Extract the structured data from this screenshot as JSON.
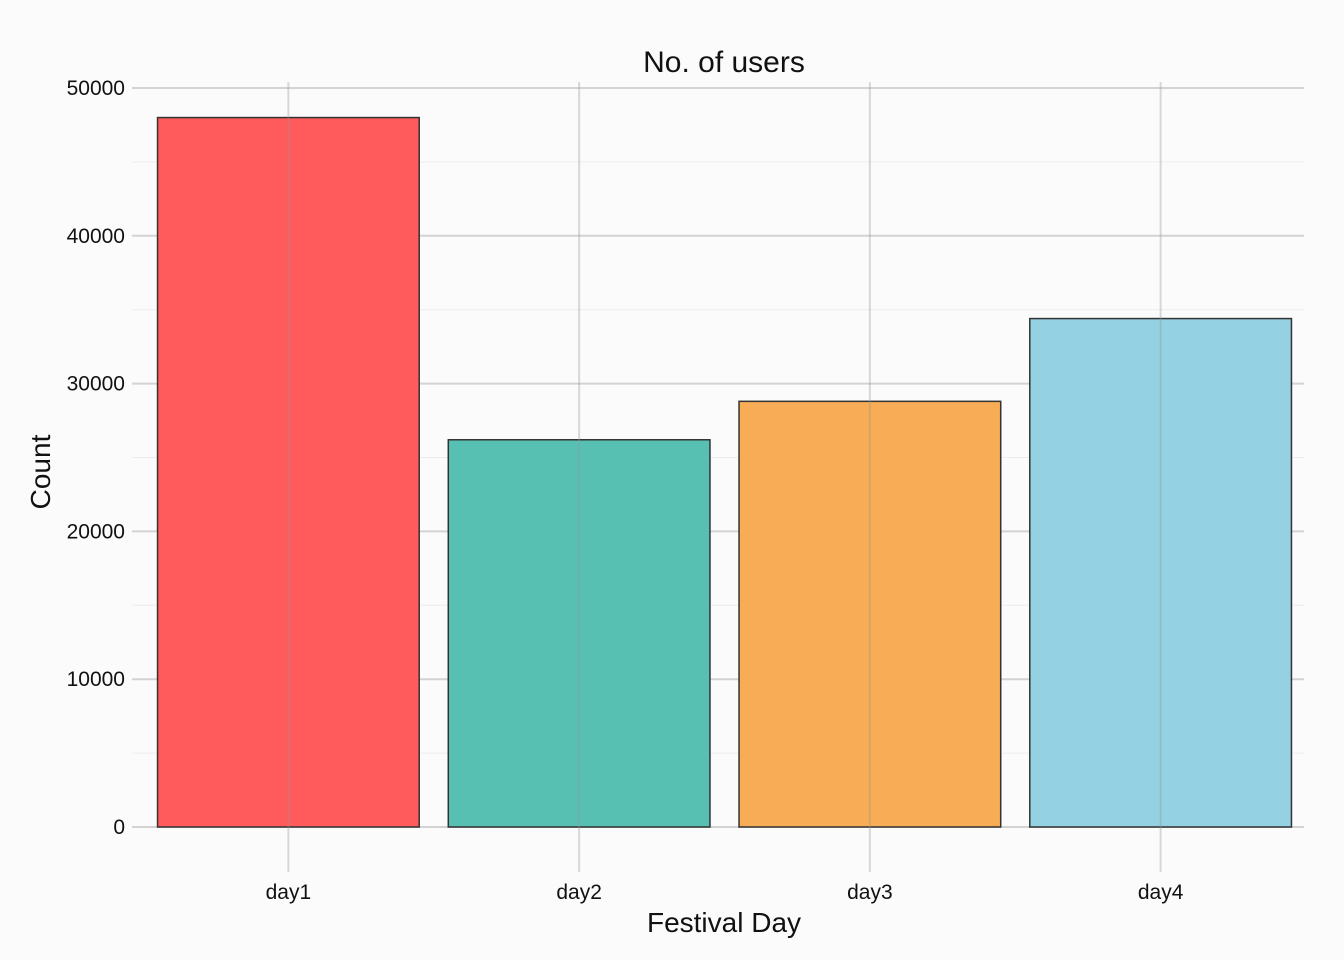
{
  "chart_data": {
    "type": "bar",
    "title": "No. of users",
    "xlabel": "Festival Day",
    "ylabel": "Count",
    "categories": [
      "day1",
      "day2",
      "day3",
      "day4"
    ],
    "values": [
      48000,
      26200,
      28800,
      34400
    ],
    "colors": [
      "#ff5a5c",
      "#57c0b2",
      "#f8ac55",
      "#93d1e3"
    ],
    "ylim": [
      0,
      50000
    ],
    "yticks": [
      "0",
      "10000",
      "20000",
      "30000",
      "40000",
      "50000"
    ],
    "grid": true,
    "legend": "none",
    "bar_outline_color": "#333333"
  }
}
